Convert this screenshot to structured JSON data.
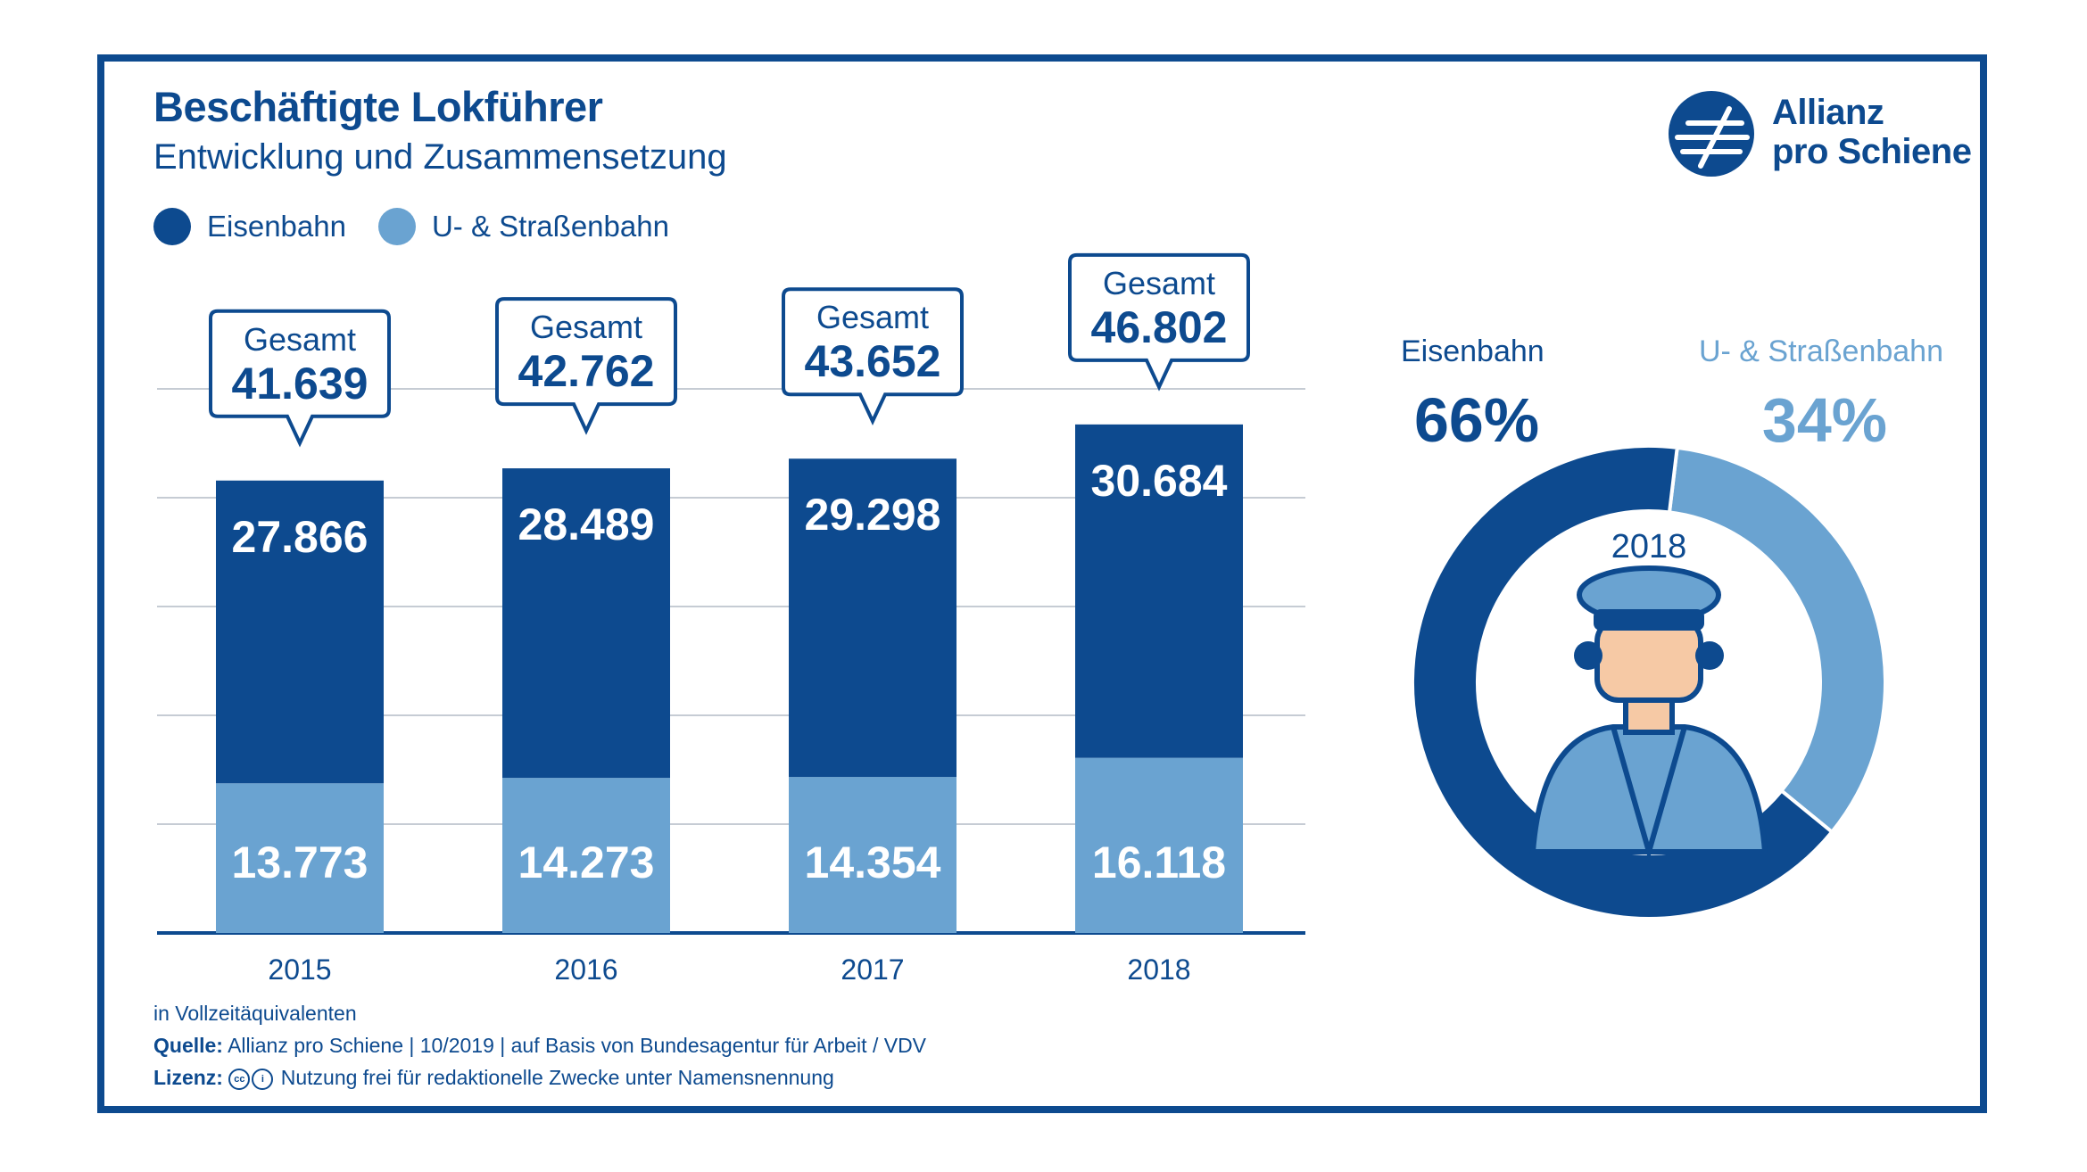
{
  "title": "Beschäftigte Lokführer",
  "subtitle": "Entwicklung und Zusammensetzung",
  "legend": [
    {
      "label": "Eisenbahn",
      "color": "#0d4a8f"
    },
    {
      "label": "U- & Straßenbahn",
      "color": "#6aa3d1"
    }
  ],
  "logo": {
    "line1": "Allianz",
    "line2": "pro Schiene"
  },
  "chart_data": [
    {
      "type": "bar",
      "stacked": true,
      "categories": [
        "2015",
        "2016",
        "2017",
        "2018"
      ],
      "series": [
        {
          "name": "Eisenbahn",
          "color": "#0d4a8f",
          "values": [
            27866,
            28489,
            29298,
            30684
          ],
          "labels": [
            "27.866",
            "28.489",
            "29.298",
            "30.684"
          ]
        },
        {
          "name": "U- & Straßenbahn",
          "color": "#6aa3d1",
          "values": [
            13773,
            14273,
            14354,
            16118
          ],
          "labels": [
            "13.773",
            "14.273",
            "14.354",
            "16.118"
          ]
        }
      ],
      "totals": {
        "label": "Gesamt",
        "values": [
          41639,
          42762,
          43652,
          46802
        ],
        "labels": [
          "41.639",
          "42.762",
          "43.652",
          "46.802"
        ]
      },
      "grid": true
    },
    {
      "type": "pie",
      "donut": true,
      "center_label": "2018",
      "slices": [
        {
          "name": "Eisenbahn",
          "value": 66,
          "label": "66%",
          "color": "#0d4a8f"
        },
        {
          "name": "U- & Straßenbahn",
          "value": 34,
          "label": "34%",
          "color": "#6aa3d1"
        }
      ]
    }
  ],
  "notes": {
    "unit": "in Vollzeitäquivalenten",
    "source_label": "Quelle:",
    "source_text": "Allianz pro Schiene | 10/2019 | auf Basis von Bundesagentur für Arbeit / VDV",
    "license_label": "Lizenz:",
    "license_text": "Nutzung frei für redaktionelle Zwecke unter Namensnennung"
  }
}
